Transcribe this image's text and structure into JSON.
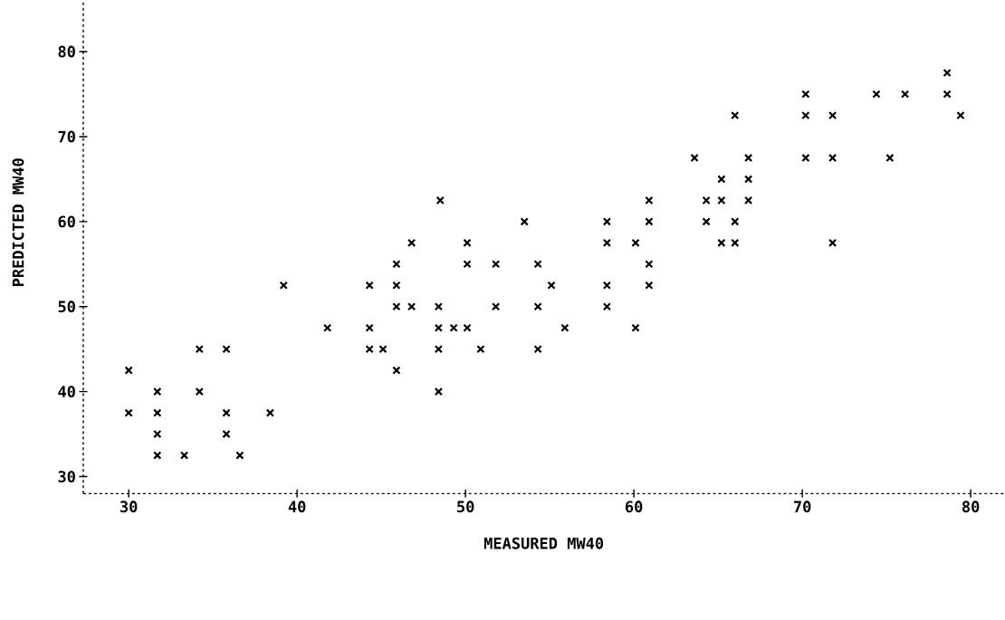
{
  "chart_data": {
    "type": "scatter",
    "xlabel": "MEASURED MW40",
    "ylabel": "PREDICTED MW40",
    "xlim": [
      27.3,
      82
    ],
    "ylim": [
      28,
      86
    ],
    "xticks": [
      30,
      40,
      50,
      60,
      70,
      80
    ],
    "yticks": [
      30,
      40,
      50,
      60,
      70,
      80
    ],
    "marker": "cross",
    "color": "#000000",
    "x": [
      30.0,
      30.0,
      31.7,
      31.7,
      31.7,
      31.7,
      33.3,
      34.2,
      34.2,
      35.8,
      35.8,
      35.8,
      36.6,
      38.4,
      39.2,
      41.8,
      44.3,
      44.3,
      44.3,
      45.1,
      45.9,
      45.9,
      45.9,
      45.9,
      46.8,
      46.8,
      48.4,
      48.4,
      48.4,
      48.4,
      48.5,
      49.3,
      50.1,
      50.1,
      50.1,
      50.9,
      51.8,
      51.8,
      53.5,
      54.3,
      54.3,
      54.3,
      55.1,
      55.9,
      58.4,
      58.4,
      58.4,
      58.4,
      60.1,
      60.1,
      60.9,
      60.9,
      60.9,
      60.9,
      63.6,
      64.3,
      64.3,
      65.2,
      65.2,
      65.2,
      66.0,
      66.0,
      66.0,
      66.8,
      66.8,
      66.8,
      70.2,
      70.2,
      70.2,
      71.8,
      71.8,
      71.8,
      74.4,
      75.2,
      76.1,
      78.6,
      78.6,
      79.4
    ],
    "values": [
      42.5,
      37.5,
      40,
      37.5,
      35,
      32.5,
      32.5,
      45,
      40,
      45,
      37.5,
      35,
      32.5,
      37.5,
      52.5,
      47.5,
      52.5,
      47.5,
      45,
      45,
      55,
      52.5,
      50,
      42.5,
      57.5,
      50,
      50,
      47.5,
      45,
      40,
      62.5,
      47.5,
      57.5,
      55,
      47.5,
      45,
      55,
      50,
      60,
      55,
      50,
      45,
      52.5,
      47.5,
      60,
      57.5,
      52.5,
      50,
      57.5,
      47.5,
      62.5,
      60,
      55,
      52.5,
      67.5,
      62.5,
      60,
      65,
      62.5,
      57.5,
      72.5,
      60,
      57.5,
      67.5,
      65,
      62.5,
      75,
      72.5,
      67.5,
      72.5,
      67.5,
      57.5,
      75,
      67.5,
      75,
      77.5,
      75,
      72.5
    ]
  }
}
